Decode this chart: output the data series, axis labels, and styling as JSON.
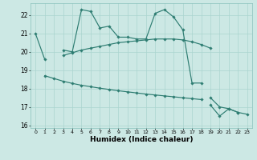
{
  "xlabel": "Humidex (Indice chaleur)",
  "x_values": [
    0,
    1,
    2,
    3,
    4,
    5,
    6,
    7,
    8,
    9,
    10,
    11,
    12,
    13,
    14,
    15,
    16,
    17,
    18,
    19,
    20,
    21,
    22,
    23
  ],
  "line1": [
    21.0,
    19.6,
    null,
    20.1,
    20.0,
    22.3,
    22.2,
    21.3,
    21.4,
    20.8,
    20.8,
    20.7,
    20.7,
    22.1,
    22.3,
    21.9,
    21.2,
    18.3,
    18.3,
    null,
    null,
    null,
    null,
    null
  ],
  "line2": [
    null,
    null,
    null,
    null,
    null,
    null,
    null,
    null,
    null,
    null,
    null,
    null,
    null,
    null,
    null,
    null,
    null,
    null,
    null,
    17.5,
    17.0,
    16.9,
    16.7,
    null
  ],
  "line3": [
    null,
    18.7,
    18.55,
    18.4,
    18.28,
    18.18,
    18.1,
    18.02,
    17.95,
    17.88,
    17.82,
    17.76,
    17.7,
    17.65,
    17.6,
    17.55,
    17.5,
    17.45,
    17.4,
    null,
    null,
    null,
    null,
    null
  ],
  "line4": [
    null,
    null,
    null,
    null,
    null,
    null,
    null,
    null,
    null,
    null,
    null,
    null,
    null,
    null,
    null,
    null,
    null,
    null,
    null,
    17.1,
    16.5,
    16.9,
    16.7,
    16.6
  ],
  "line5": [
    null,
    null,
    null,
    19.8,
    19.95,
    20.1,
    20.2,
    20.3,
    20.4,
    20.5,
    20.55,
    20.6,
    20.65,
    20.7,
    20.7,
    20.7,
    20.65,
    20.55,
    20.4,
    20.2,
    null,
    null,
    null,
    null
  ],
  "background_color": "#cce8e4",
  "grid_color": "#aad4cf",
  "line_color": "#2e7d72",
  "ylim_min": 15.85,
  "ylim_max": 22.65,
  "yticks": [
    16,
    17,
    18,
    19,
    20,
    21,
    22
  ],
  "xticks": [
    0,
    1,
    2,
    3,
    4,
    5,
    6,
    7,
    8,
    9,
    10,
    11,
    12,
    13,
    14,
    15,
    16,
    17,
    18,
    19,
    20,
    21,
    22,
    23
  ]
}
